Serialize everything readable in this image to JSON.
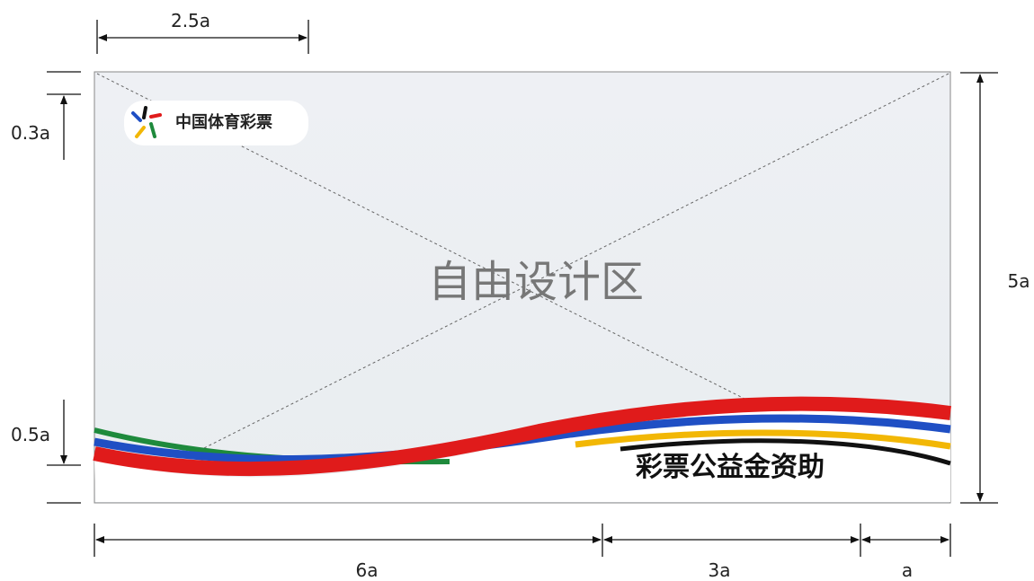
{
  "dimensions": {
    "top": "2.5a",
    "left_top": "0.3a",
    "left_bottom": "0.5a",
    "right": "5a",
    "bottom_left": "6a",
    "bottom_middle": "3a",
    "bottom_right": "a"
  },
  "logo": {
    "text": "中国体育彩票"
  },
  "center_label": "自由设计区",
  "footer_slogan": "彩票公益金资助"
}
